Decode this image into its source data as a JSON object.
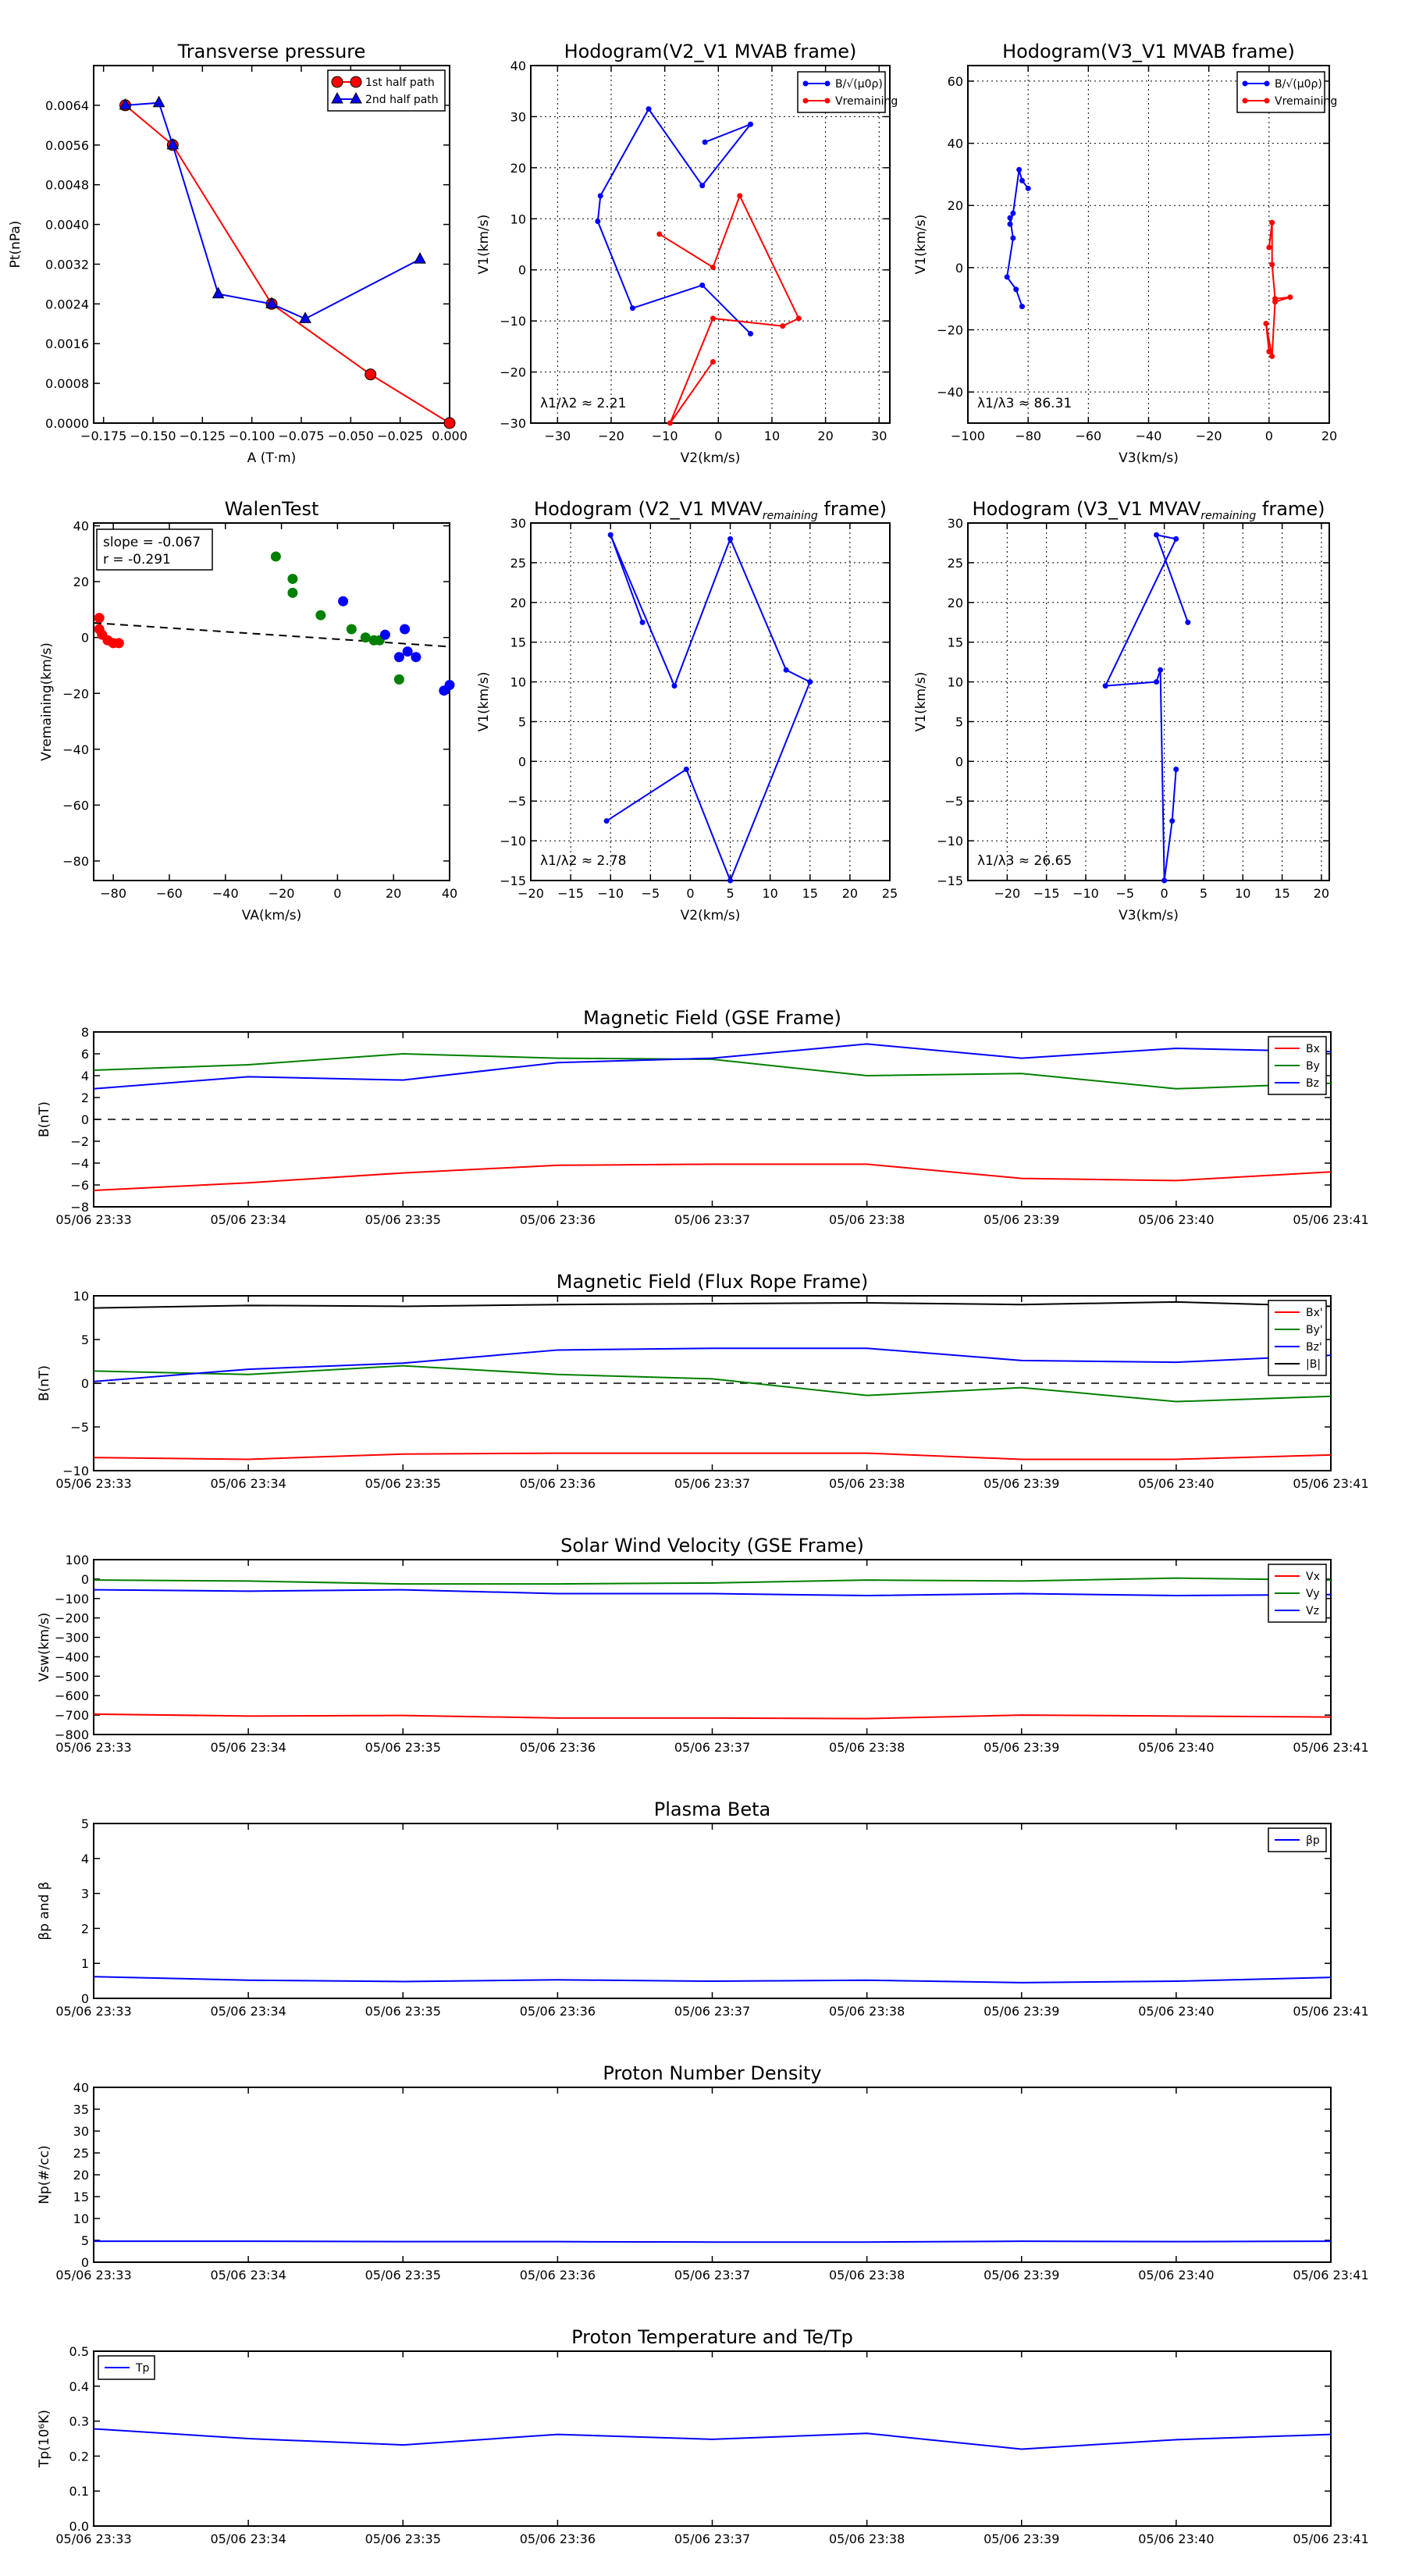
{
  "time_ticks": [
    "05/06 23:33",
    "05/06 23:34",
    "05/06 23:35",
    "05/06 23:36",
    "05/06 23:37",
    "05/06 23:38",
    "05/06 23:39",
    "05/06 23:40",
    "05/06 23:41"
  ],
  "chart_data": [
    {
      "id": "transverse_pressure",
      "type": "line",
      "title": "Transverse pressure",
      "xlabel": "A (T·m)",
      "ylabel": "Pt(nPa)",
      "xlim": [
        -0.18,
        0.0
      ],
      "ylim": [
        0.0,
        0.0072
      ],
      "xticks": [
        -0.175,
        -0.15,
        -0.125,
        -0.1,
        -0.075,
        -0.05,
        -0.025,
        0.0
      ],
      "xtick_labels": [
        "−0.175",
        "−0.150",
        "−0.125",
        "−0.100",
        "−0.075",
        "−0.050",
        "−0.025",
        "0.000"
      ],
      "yticks": [
        0.0,
        0.0008,
        0.0016,
        0.0024,
        0.0032,
        0.004,
        0.0048,
        0.0056,
        0.0064
      ],
      "ytick_labels": [
        "0.0000",
        "0.0008",
        "0.0016",
        "0.0024",
        "0.0032",
        "0.0040",
        "0.0048",
        "0.0056",
        "0.0064"
      ],
      "legend_position": "top-right",
      "grid": false,
      "series": [
        {
          "name": "1st half path",
          "color": "#ff0000",
          "marker": "circle",
          "x": [
            -0.164,
            -0.14,
            -0.09,
            -0.04,
            0.0
          ],
          "y": [
            0.0064,
            0.0056,
            0.0024,
            0.00098,
            0.0
          ]
        },
        {
          "name": "2nd half path",
          "color": "#0000ff",
          "marker": "triangle",
          "x": [
            -0.164,
            -0.147,
            -0.14,
            -0.117,
            -0.09,
            -0.073,
            -0.015
          ],
          "y": [
            0.0064,
            0.00645,
            0.0056,
            0.0026,
            0.0024,
            0.0021,
            0.0033
          ]
        }
      ]
    },
    {
      "id": "hodogram_v2v1_mvab",
      "type": "line",
      "title": "Hodogram(V2_V1 MVAB frame)",
      "xlabel": "V2(km/s)",
      "ylabel": "V1(km/s)",
      "xlim": [
        -35,
        32
      ],
      "ylim": [
        -30,
        40
      ],
      "xticks": [
        -30,
        -20,
        -10,
        0,
        10,
        20,
        30
      ],
      "xtick_labels": [
        "−30",
        "−20",
        "−10",
        "0",
        "10",
        "20",
        "30"
      ],
      "yticks": [
        -30,
        -20,
        -10,
        0,
        10,
        20,
        30,
        40
      ],
      "ytick_labels": [
        "−30",
        "−20",
        "−10",
        "0",
        "10",
        "20",
        "30",
        "40"
      ],
      "grid": true,
      "legend_position": "top-right",
      "annotation": "λ1/λ2 ≈ 2.21",
      "series": [
        {
          "name": "B/√(μ0ρ)",
          "color": "#0000ff",
          "x": [
            -2.5,
            6,
            -3,
            -13,
            -22,
            -22.5,
            -16,
            -3,
            6
          ],
          "y": [
            25,
            28.5,
            16.5,
            31.5,
            14.5,
            9.5,
            -7.5,
            -3,
            -12.5
          ]
        },
        {
          "name": "Vremaining",
          "color": "#ff0000",
          "x": [
            -11,
            -1,
            4,
            15,
            12,
            -1,
            -9,
            -1
          ],
          "y": [
            7,
            0.5,
            14.5,
            -9.5,
            -11,
            -9.5,
            -30,
            -18
          ]
        }
      ]
    },
    {
      "id": "hodogram_v3v1_mvab",
      "type": "line",
      "title": "Hodogram(V3_V1 MVAB frame)",
      "xlabel": "V3(km/s)",
      "ylabel": "V1(km/s)",
      "xlim": [
        -100,
        20
      ],
      "ylim": [
        -50,
        65
      ],
      "xticks": [
        -100,
        -80,
        -60,
        -40,
        -20,
        0,
        20
      ],
      "xtick_labels": [
        "−100",
        "−80",
        "−60",
        "−40",
        "−20",
        "0",
        "20"
      ],
      "yticks": [
        -40,
        -20,
        0,
        20,
        40,
        60
      ],
      "ytick_labels": [
        "−40",
        "−20",
        "0",
        "20",
        "40",
        "60"
      ],
      "grid": true,
      "legend_position": "top-right",
      "annotation": "λ1/λ3 ≈ 86.31",
      "series": [
        {
          "name": "B/√(μ0ρ)",
          "color": "#0000ff",
          "x": [
            -80,
            -82,
            -83,
            -85,
            -86,
            -86,
            -85,
            -87,
            -84,
            -82
          ],
          "y": [
            25.5,
            28,
            31.5,
            17.5,
            14,
            16,
            9.5,
            -3,
            -7,
            -12.5
          ]
        },
        {
          "name": "Vremaining",
          "color": "#ff0000",
          "x": [
            0,
            1,
            1,
            2,
            7,
            2,
            1,
            -1,
            0
          ],
          "y": [
            6.5,
            14.5,
            1,
            -10,
            -9.5,
            -11,
            -28.5,
            -18,
            -27
          ]
        }
      ]
    },
    {
      "id": "walen_test",
      "type": "scatter",
      "title": "WalenTest",
      "xlabel": "VA(km/s)",
      "ylabel": "Vremaining(km/s)",
      "xlim": [
        -87,
        40
      ],
      "ylim": [
        -87,
        41
      ],
      "xticks": [
        -80,
        -60,
        -40,
        -20,
        0,
        20,
        40
      ],
      "xtick_labels": [
        "−80",
        "−60",
        "−40",
        "−20",
        "0",
        "20",
        "40"
      ],
      "yticks": [
        -80,
        -60,
        -40,
        -20,
        0,
        20,
        40
      ],
      "ytick_labels": [
        "−80",
        "−60",
        "−40",
        "−20",
        "0",
        "20",
        "40"
      ],
      "grid": false,
      "annotation": [
        "slope = -0.067",
        "r = -0.291"
      ],
      "fit_line": {
        "slope": -0.067,
        "intercept": -0.6
      },
      "series": [
        {
          "color": "#ff0000",
          "x": [
            -85,
            -85,
            -84,
            -82,
            -80,
            -78
          ],
          "y": [
            7,
            3,
            1,
            -1,
            -2,
            -2
          ]
        },
        {
          "color": "#008000",
          "x": [
            -22,
            -16,
            -16,
            -6,
            5,
            10,
            13,
            22,
            15
          ],
          "y": [
            29,
            21,
            16,
            8,
            3,
            0,
            -1,
            -15,
            -1
          ]
        },
        {
          "color": "#0000ff",
          "x": [
            2,
            17,
            24,
            25,
            22,
            28,
            38,
            40
          ],
          "y": [
            13,
            1,
            3,
            -5,
            -7,
            -7,
            -19,
            -17
          ]
        }
      ]
    },
    {
      "id": "hodogram_v2v1_mvav",
      "type": "line",
      "title": "Hodogram (V2_V1 MVAV",
      "title_sub": "remaining",
      "title_tail": " frame)",
      "xlabel": "V2(km/s)",
      "ylabel": "V1(km/s)",
      "xlim": [
        -20,
        25
      ],
      "ylim": [
        -15,
        30
      ],
      "xticks": [
        -20,
        -15,
        -10,
        -5,
        0,
        5,
        10,
        15,
        20,
        25
      ],
      "xtick_labels": [
        "−20",
        "−15",
        "−10",
        "−5",
        "0",
        "5",
        "10",
        "15",
        "20",
        "25"
      ],
      "yticks": [
        -15,
        -10,
        -5,
        0,
        5,
        10,
        15,
        20,
        25,
        30
      ],
      "ytick_labels": [
        "−15",
        "−10",
        "−5",
        "0",
        "5",
        "10",
        "15",
        "20",
        "25",
        "30"
      ],
      "grid": true,
      "annotation": "λ1/λ2 ≈ 2.78",
      "series": [
        {
          "color": "#0000ff",
          "x": [
            -6,
            -10,
            -2,
            5,
            12,
            15,
            5,
            -0.5,
            -10.5
          ],
          "y": [
            17.5,
            28.5,
            9.5,
            28,
            11.5,
            10,
            -15,
            -1,
            -7.5
          ]
        }
      ]
    },
    {
      "id": "hodogram_v3v1_mvav",
      "type": "line",
      "title": "Hodogram (V3_V1 MVAV",
      "title_sub": "remaining",
      "title_tail": " frame)",
      "xlabel": "V3(km/s)",
      "ylabel": "V1(km/s)",
      "xlim": [
        -25,
        21
      ],
      "ylim": [
        -15,
        30
      ],
      "xticks": [
        -20,
        -15,
        -10,
        -5,
        0,
        5,
        10,
        15,
        20
      ],
      "xtick_labels": [
        "−20",
        "−15",
        "−10",
        "−5",
        "0",
        "5",
        "10",
        "15",
        "20"
      ],
      "yticks": [
        -15,
        -10,
        -5,
        0,
        5,
        10,
        15,
        20,
        25,
        30
      ],
      "ytick_labels": [
        "−15",
        "−10",
        "−5",
        "0",
        "5",
        "10",
        "15",
        "20",
        "25",
        "30"
      ],
      "grid": true,
      "annotation": "λ1/λ3 ≈ 26.65",
      "series": [
        {
          "color": "#0000ff",
          "x": [
            3,
            -1,
            1.5,
            -7.5,
            -1,
            -0.5,
            0,
            1,
            1.5
          ],
          "y": [
            17.5,
            28.5,
            28,
            9.5,
            10,
            11.5,
            -15,
            -7.5,
            -1
          ]
        }
      ]
    },
    {
      "id": "magnetic_field_gse",
      "type": "line",
      "title": "Magnetic Field (GSE Frame)",
      "xlabel": "",
      "ylabel": "B(nT)",
      "ylim": [
        -8,
        8
      ],
      "yticks": [
        -8,
        -6,
        -4,
        -2,
        0,
        2,
        4,
        6,
        8
      ],
      "ytick_labels": [
        "−8",
        "−6",
        "−4",
        "−2",
        "0",
        "2",
        "4",
        "6",
        "8"
      ],
      "zero_line": true,
      "legend_position": "top-right",
      "series": [
        {
          "name": "Bx",
          "color": "#ff0000",
          "values": [
            -6.5,
            -5.8,
            -4.9,
            -4.2,
            -4.1,
            -4.1,
            -5.4,
            -5.6,
            -4.8
          ]
        },
        {
          "name": "By",
          "color": "#008000",
          "values": [
            4.5,
            5.0,
            6.0,
            5.6,
            5.5,
            4.0,
            4.2,
            2.8,
            3.3
          ]
        },
        {
          "name": "Bz",
          "color": "#0000ff",
          "values": [
            2.8,
            3.9,
            3.6,
            5.2,
            5.6,
            6.9,
            5.6,
            6.5,
            6.2
          ]
        }
      ]
    },
    {
      "id": "magnetic_field_frf",
      "type": "line",
      "title": "Magnetic Field (Flux Rope Frame)",
      "xlabel": "",
      "ylabel": "B(nT)",
      "ylim": [
        -10,
        10
      ],
      "yticks": [
        -10,
        -5,
        0,
        5,
        10
      ],
      "ytick_labels": [
        "−10",
        "−5",
        "0",
        "5",
        "10"
      ],
      "zero_line": true,
      "legend_position": "top-right",
      "series": [
        {
          "name": "Bx'",
          "color": "#ff0000",
          "values": [
            -8.5,
            -8.7,
            -8.1,
            -8.0,
            -8.0,
            -8.0,
            -8.7,
            -8.7,
            -8.2
          ]
        },
        {
          "name": "By'",
          "color": "#008000",
          "values": [
            1.4,
            1.0,
            2.0,
            1.0,
            0.5,
            -1.4,
            -0.5,
            -2.1,
            -1.5
          ]
        },
        {
          "name": "Bz'",
          "color": "#0000ff",
          "values": [
            0.2,
            1.6,
            2.3,
            3.8,
            4.0,
            4.0,
            2.6,
            2.4,
            3.2
          ]
        },
        {
          "name": "|B|",
          "color": "#000000",
          "values": [
            8.6,
            8.9,
            8.8,
            9.0,
            9.1,
            9.2,
            9.0,
            9.3,
            8.8
          ]
        }
      ]
    },
    {
      "id": "solar_wind_velocity",
      "type": "line",
      "title": "Solar Wind Velocity (GSE Frame)",
      "xlabel": "",
      "ylabel": "Vsw(km/s)",
      "ylim": [
        -800,
        100
      ],
      "yticks": [
        -800,
        -700,
        -600,
        -500,
        -400,
        -300,
        -200,
        -100,
        0,
        100
      ],
      "ytick_labels": [
        "−800",
        "−700",
        "−600",
        "−500",
        "−400",
        "−300",
        "−200",
        "−100",
        "0",
        "100"
      ],
      "legend_position": "top-right",
      "series": [
        {
          "name": "Vx",
          "color": "#ff0000",
          "values": [
            -695,
            -705,
            -702,
            -715,
            -715,
            -718,
            -700,
            -705,
            -710
          ]
        },
        {
          "name": "Vy",
          "color": "#008000",
          "values": [
            -5,
            -10,
            -25,
            -25,
            -20,
            -5,
            -10,
            5,
            -5
          ]
        },
        {
          "name": "Vz",
          "color": "#0000ff",
          "values": [
            -55,
            -62,
            -55,
            -75,
            -75,
            -85,
            -75,
            -85,
            -80
          ]
        }
      ]
    },
    {
      "id": "plasma_beta",
      "type": "line",
      "title": "Plasma Beta",
      "xlabel": "",
      "ylabel": "βp and β",
      "ylim": [
        0,
        5
      ],
      "yticks": [
        0,
        1,
        2,
        3,
        4,
        5
      ],
      "ytick_labels": [
        "0",
        "1",
        "2",
        "3",
        "4",
        "5"
      ],
      "legend_position": "top-right",
      "series": [
        {
          "name": "βp",
          "color": "#0000ff",
          "values": [
            0.62,
            0.52,
            0.48,
            0.53,
            0.49,
            0.52,
            0.45,
            0.49,
            0.6
          ]
        }
      ]
    },
    {
      "id": "proton_density",
      "type": "line",
      "title": "Proton Number Density",
      "xlabel": "",
      "ylabel": "Np(#/cc)",
      "ylim": [
        0,
        40
      ],
      "yticks": [
        0,
        5,
        10,
        15,
        20,
        25,
        30,
        35,
        40
      ],
      "ytick_labels": [
        "0",
        "5",
        "10",
        "15",
        "20",
        "25",
        "30",
        "35",
        "40"
      ],
      "series": [
        {
          "color": "#0000ff",
          "values": [
            4.8,
            4.8,
            4.7,
            4.7,
            4.6,
            4.6,
            4.8,
            4.7,
            4.8
          ]
        }
      ]
    },
    {
      "id": "proton_temperature",
      "type": "line",
      "title": "Proton Temperature and Te/Tp",
      "xlabel": "",
      "ylabel": "Tp(10⁶K)",
      "ylim": [
        0,
        0.5
      ],
      "yticks": [
        0,
        0.1,
        0.2,
        0.3,
        0.4,
        0.5
      ],
      "ytick_labels": [
        "0.0",
        "0.1",
        "0.2",
        "0.3",
        "0.4",
        "0.5"
      ],
      "legend_position": "top-left",
      "series": [
        {
          "name": "Tp",
          "color": "#0000ff",
          "values": [
            0.278,
            0.25,
            0.232,
            0.262,
            0.248,
            0.265,
            0.22,
            0.247,
            0.262
          ]
        }
      ]
    }
  ]
}
